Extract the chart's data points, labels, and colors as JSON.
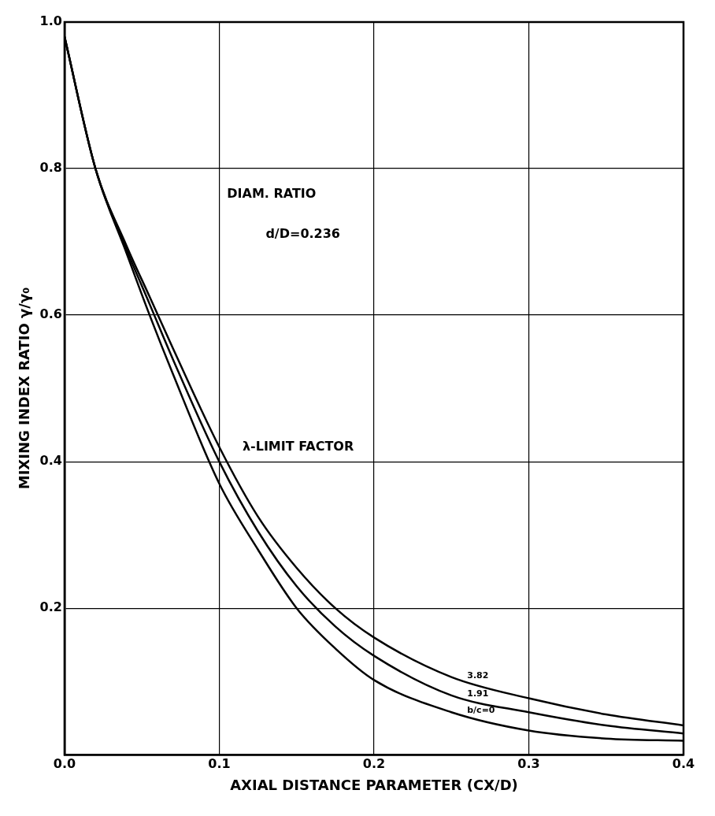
{
  "chart_data": {
    "type": "line",
    "xlabel": "AXIAL DISTANCE PARAMETER (CX/D)",
    "ylabel": "MIXING INDEX RATIO γ/γ₀",
    "x": [
      0,
      0.02,
      0.04,
      0.055,
      0.07,
      0.1,
      0.125,
      0.15,
      0.175,
      0.2,
      0.25,
      0.3,
      0.35,
      0.4
    ],
    "series": [
      {
        "name": "3.82",
        "color": "#000000",
        "values": [
          0.98,
          0.8,
          0.695,
          0.625,
          0.555,
          0.42,
          0.325,
          0.255,
          0.2,
          0.16,
          0.106,
          0.077,
          0.055,
          0.04
        ]
      },
      {
        "name": "1.91",
        "color": "#000000",
        "values": [
          0.98,
          0.8,
          0.69,
          0.615,
          0.54,
          0.4,
          0.305,
          0.23,
          0.175,
          0.135,
          0.081,
          0.058,
          0.04,
          0.029
        ]
      },
      {
        "name": "b/c=0",
        "color": "#000000",
        "values": [
          0.98,
          0.8,
          0.685,
          0.6,
          0.52,
          0.37,
          0.28,
          0.2,
          0.145,
          0.102,
          0.058,
          0.033,
          0.022,
          0.019
        ]
      }
    ],
    "xlim": [
      0,
      0.4
    ],
    "xticks": [
      {
        "value": 0,
        "label": "0.0"
      },
      0.1,
      0.2,
      0.3,
      0.4
    ],
    "ylim": [
      0,
      1
    ],
    "yticks": [
      {
        "value": 0,
        "label": null
      },
      0.2,
      0.4,
      0.6,
      0.8,
      {
        "value": 1,
        "label": "1.0"
      }
    ],
    "annotations": [
      "DIAM. RATIO",
      "d/D=0.236",
      "λ-LIMIT FACTOR"
    ],
    "grid": true,
    "legend": false,
    "marker": "none",
    "line_style": "solid"
  }
}
